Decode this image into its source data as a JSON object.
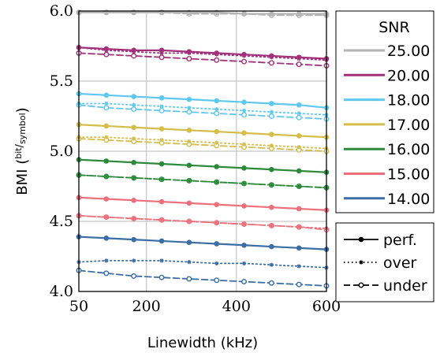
{
  "chart_data": {
    "type": "line",
    "xlabel": "Linewidth (kHz)",
    "ylabel_main": "BMI (",
    "ylabel_unit_num": "bit",
    "ylabel_unit_sep": "/",
    "ylabel_unit_den": "symbol",
    "ylabel_close": ")",
    "xlim": [
      50,
      600
    ],
    "ylim": [
      4.0,
      6.0
    ],
    "xticks": [
      50,
      200,
      400,
      600
    ],
    "xtick_labels": [
      "50",
      "200",
      "400",
      "600"
    ],
    "yticks": [
      4.0,
      4.5,
      5.0,
      5.5,
      6.0
    ],
    "ytick_labels": [
      "4.0",
      "4.5",
      "5.0",
      "5.5",
      "6.0"
    ],
    "grid": true,
    "x": [
      50,
      111,
      172,
      234,
      295,
      356,
      417,
      478,
      539,
      600
    ],
    "legend_snr_title": "SNR",
    "snr_series": [
      {
        "name": "25.00",
        "color": "#b5b5b5",
        "perf": [
          5.99,
          5.99,
          5.99,
          5.99,
          5.99,
          5.99,
          5.98,
          5.98,
          5.98,
          5.98
        ],
        "over": [
          5.99,
          5.99,
          5.99,
          5.99,
          5.99,
          5.99,
          5.98,
          5.98,
          5.98,
          5.97
        ],
        "under": [
          5.99,
          5.99,
          5.99,
          5.99,
          5.98,
          5.98,
          5.98,
          5.97,
          5.97,
          5.97
        ]
      },
      {
        "name": "20.00",
        "color": "#a3307a",
        "perf": [
          5.74,
          5.73,
          5.72,
          5.72,
          5.71,
          5.7,
          5.69,
          5.68,
          5.67,
          5.66
        ],
        "over": [
          5.74,
          5.72,
          5.71,
          5.7,
          5.7,
          5.69,
          5.68,
          5.67,
          5.66,
          5.65
        ],
        "under": [
          5.7,
          5.69,
          5.68,
          5.67,
          5.66,
          5.65,
          5.64,
          5.63,
          5.62,
          5.61
        ]
      },
      {
        "name": "18.00",
        "color": "#5ec8ee",
        "perf": [
          5.41,
          5.4,
          5.39,
          5.38,
          5.37,
          5.36,
          5.35,
          5.34,
          5.33,
          5.31
        ],
        "over": [
          5.34,
          5.34,
          5.33,
          5.32,
          5.31,
          5.3,
          5.29,
          5.28,
          5.27,
          5.26
        ],
        "under": [
          5.33,
          5.31,
          5.3,
          5.29,
          5.28,
          5.27,
          5.26,
          5.25,
          5.24,
          5.23
        ]
      },
      {
        "name": "17.00",
        "color": "#d6bd4a",
        "perf": [
          5.19,
          5.18,
          5.17,
          5.16,
          5.15,
          5.14,
          5.13,
          5.12,
          5.11,
          5.1
        ],
        "over": [
          5.1,
          5.1,
          5.09,
          5.08,
          5.07,
          5.06,
          5.05,
          5.04,
          5.03,
          5.02
        ],
        "under": [
          5.09,
          5.08,
          5.07,
          5.06,
          5.05,
          5.04,
          5.03,
          5.02,
          5.01,
          5.0
        ]
      },
      {
        "name": "16.00",
        "color": "#2a8a39",
        "perf": [
          4.94,
          4.93,
          4.92,
          4.91,
          4.9,
          4.89,
          4.88,
          4.87,
          4.86,
          4.85
        ],
        "over": [
          4.83,
          4.82,
          4.81,
          4.8,
          4.79,
          4.78,
          4.77,
          4.76,
          4.75,
          4.74
        ],
        "under": [
          4.83,
          4.82,
          4.81,
          4.8,
          4.79,
          4.78,
          4.77,
          4.76,
          4.75,
          4.74
        ]
      },
      {
        "name": "15.00",
        "color": "#ec6f7b",
        "perf": [
          4.67,
          4.66,
          4.65,
          4.64,
          4.63,
          4.62,
          4.61,
          4.6,
          4.59,
          4.58
        ],
        "over": [
          4.54,
          4.53,
          4.52,
          4.51,
          4.5,
          4.49,
          4.48,
          4.47,
          4.46,
          4.45
        ],
        "under": [
          4.54,
          4.53,
          4.52,
          4.51,
          4.5,
          4.49,
          4.48,
          4.47,
          4.46,
          4.44
        ]
      },
      {
        "name": "14.00",
        "color": "#3b6ea6",
        "perf": [
          4.39,
          4.38,
          4.37,
          4.36,
          4.35,
          4.34,
          4.33,
          4.32,
          4.31,
          4.3
        ],
        "over": [
          4.21,
          4.22,
          4.22,
          4.22,
          4.21,
          4.2,
          4.2,
          4.19,
          4.18,
          4.17
        ],
        "under": [
          4.15,
          4.13,
          4.11,
          4.1,
          4.09,
          4.08,
          4.07,
          4.06,
          4.05,
          4.04
        ]
      }
    ],
    "style_legend": [
      {
        "name": "perf.",
        "dash": "solid",
        "marker": "filled-circle"
      },
      {
        "name": "over",
        "dash": "dotted",
        "marker": "star"
      },
      {
        "name": "under",
        "dash": "dashed",
        "marker": "open-circle"
      }
    ]
  }
}
